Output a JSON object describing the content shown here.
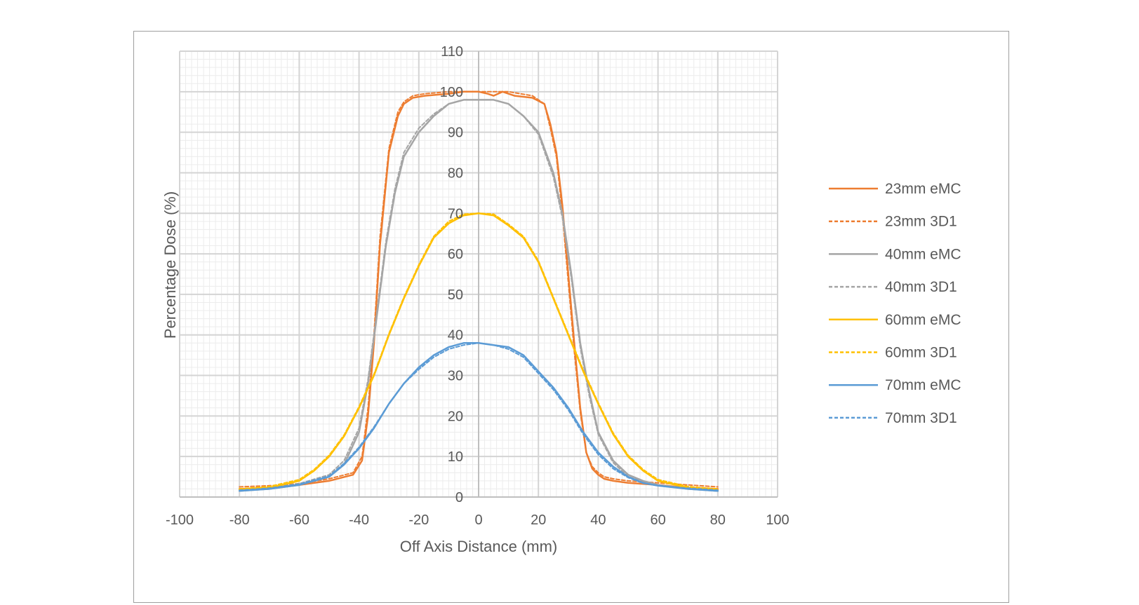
{
  "chart_data": {
    "type": "line",
    "title": "",
    "xlabel": "Off Axis Distance (mm)",
    "ylabel": "Percentage Dose (%)",
    "xlim": [
      -100,
      100
    ],
    "ylim": [
      0,
      110
    ],
    "x_ticks": [
      -100,
      -80,
      -60,
      -40,
      -20,
      0,
      20,
      40,
      60,
      80,
      100
    ],
    "y_ticks": [
      0,
      10,
      20,
      30,
      40,
      50,
      60,
      70,
      80,
      90,
      100,
      110
    ],
    "grid": true,
    "minor_grid": true,
    "legend_position": "right",
    "series": [
      {
        "name": "23mm eMC",
        "color": "#ED7D31",
        "dash": "solid",
        "x": [
          -80,
          -70,
          -60,
          -50,
          -42,
          -39,
          -37,
          -35,
          -33,
          -30,
          -27,
          -25,
          -22,
          -18,
          -10,
          -5,
          0,
          3,
          5,
          8,
          12,
          18,
          22,
          24,
          26,
          28,
          30,
          32,
          34,
          36,
          38,
          40,
          42,
          45,
          50,
          60,
          70,
          80
        ],
        "y": [
          2,
          2.3,
          3,
          4,
          5.5,
          9,
          20,
          38,
          62,
          85,
          94,
          97,
          98.5,
          99,
          99.5,
          100,
          100,
          99.5,
          99,
          100,
          99,
          98.5,
          97,
          92,
          85,
          72,
          55,
          38,
          22,
          11,
          7,
          5.5,
          4.5,
          4,
          3.5,
          3,
          2.3,
          2
        ]
      },
      {
        "name": "23mm 3D1",
        "color": "#ED7D31",
        "dash": "dashed",
        "x": [
          -80,
          -70,
          -60,
          -50,
          -42,
          -39,
          -37,
          -35,
          -33,
          -30,
          -27,
          -25,
          -22,
          -18,
          -10,
          -5,
          0,
          5,
          10,
          18,
          22,
          24,
          26,
          28,
          30,
          32,
          34,
          36,
          38,
          40,
          42,
          45,
          50,
          60,
          70,
          80
        ],
        "y": [
          2.5,
          2.8,
          3.3,
          4.5,
          6,
          10,
          22,
          40,
          64,
          86,
          95,
          97.5,
          99,
          99.5,
          100,
          100,
          100,
          100,
          100,
          99,
          97,
          91,
          84,
          70,
          53,
          36,
          21,
          11,
          7.5,
          6,
          5,
          4.5,
          4,
          3.5,
          3,
          2.5
        ]
      },
      {
        "name": "40mm eMC",
        "color": "#A5A5A5",
        "dash": "solid",
        "x": [
          -80,
          -70,
          -60,
          -50,
          -45,
          -40,
          -37,
          -34,
          -31,
          -28,
          -25,
          -20,
          -15,
          -10,
          -5,
          0,
          5,
          10,
          15,
          20,
          25,
          28,
          31,
          34,
          37,
          40,
          45,
          50,
          55,
          60,
          70,
          80
        ],
        "y": [
          1.5,
          2,
          3,
          5,
          8,
          16,
          28,
          45,
          62,
          75,
          84,
          90,
          94,
          97,
          98,
          98,
          98,
          97,
          94,
          90,
          80,
          70,
          55,
          38,
          26,
          16,
          9,
          5.5,
          4,
          3,
          2,
          1.5
        ]
      },
      {
        "name": "40mm 3D1",
        "color": "#A5A5A5",
        "dash": "dashed",
        "x": [
          -80,
          -70,
          -60,
          -50,
          -45,
          -40,
          -37,
          -34,
          -31,
          -28,
          -25,
          -20,
          -15,
          -10,
          -5,
          0,
          5,
          10,
          15,
          20,
          25,
          28,
          31,
          34,
          37,
          40,
          45,
          50,
          55,
          60,
          70,
          80
        ],
        "y": [
          1.8,
          2.3,
          3.3,
          5.5,
          9,
          17,
          29,
          46,
          63,
          76,
          85,
          91,
          94.5,
          97,
          98,
          98,
          98,
          97,
          94,
          89.5,
          79,
          69,
          54,
          37,
          25,
          15.5,
          8.5,
          5,
          3.8,
          3,
          2.2,
          1.8
        ]
      },
      {
        "name": "60mm eMC",
        "color": "#FFC000",
        "dash": "solid",
        "x": [
          -80,
          -70,
          -60,
          -55,
          -50,
          -45,
          -40,
          -35,
          -30,
          -25,
          -20,
          -15,
          -10,
          -5,
          0,
          5,
          10,
          15,
          20,
          25,
          30,
          35,
          40,
          45,
          50,
          55,
          60,
          70,
          80
        ],
        "y": [
          1.8,
          2.3,
          4,
          6.5,
          10,
          15,
          22,
          30,
          40,
          49,
          57,
          64,
          67.5,
          69.5,
          70,
          69.5,
          67,
          64,
          58,
          49,
          40,
          31,
          23,
          15.5,
          10,
          6.5,
          4,
          2.3,
          1.8
        ]
      },
      {
        "name": "60mm 3D1",
        "color": "#FFC000",
        "dash": "dashed",
        "x": [
          -80,
          -70,
          -60,
          -55,
          -50,
          -45,
          -40,
          -35,
          -30,
          -25,
          -20,
          -15,
          -10,
          -5,
          0,
          5,
          10,
          15,
          20,
          25,
          30,
          35,
          40,
          45,
          50,
          55,
          60,
          70,
          80
        ],
        "y": [
          2,
          2.6,
          4.3,
          6.8,
          10.3,
          15.3,
          22.3,
          30.3,
          40.3,
          49.3,
          57.3,
          64.3,
          68,
          69.8,
          70,
          69.8,
          67.3,
          64.3,
          58.3,
          49.3,
          40.3,
          31.3,
          23.3,
          15.8,
          10.3,
          6.8,
          4.3,
          2.6,
          2
        ]
      },
      {
        "name": "70mm eMC",
        "color": "#5B9BD5",
        "dash": "solid",
        "x": [
          -80,
          -70,
          -60,
          -50,
          -45,
          -40,
          -35,
          -30,
          -25,
          -20,
          -15,
          -10,
          -5,
          0,
          5,
          10,
          15,
          20,
          25,
          30,
          35,
          40,
          45,
          50,
          55,
          60,
          70,
          80
        ],
        "y": [
          1.5,
          2,
          3,
          5,
          8,
          12,
          17,
          23,
          28,
          32,
          35,
          37,
          38,
          38,
          37.5,
          37,
          35,
          31,
          27,
          22,
          16,
          11,
          7.5,
          5,
          3.5,
          2.8,
          2,
          1.5
        ]
      },
      {
        "name": "70mm 3D1",
        "color": "#5B9BD5",
        "dash": "dashed",
        "x": [
          -80,
          -70,
          -60,
          -50,
          -45,
          -40,
          -35,
          -30,
          -25,
          -20,
          -15,
          -10,
          -5,
          0,
          5,
          10,
          15,
          20,
          25,
          30,
          35,
          40,
          45,
          50,
          55,
          60,
          70,
          80
        ],
        "y": [
          1.7,
          2.2,
          3.2,
          5.2,
          8.3,
          12.3,
          17.3,
          23,
          28,
          31.5,
          34.5,
          36.5,
          37.5,
          38,
          37.5,
          36.5,
          34.5,
          30.5,
          26.5,
          21.5,
          15.5,
          10.5,
          7,
          4.8,
          3.4,
          2.8,
          2.2,
          1.7
        ]
      }
    ]
  }
}
